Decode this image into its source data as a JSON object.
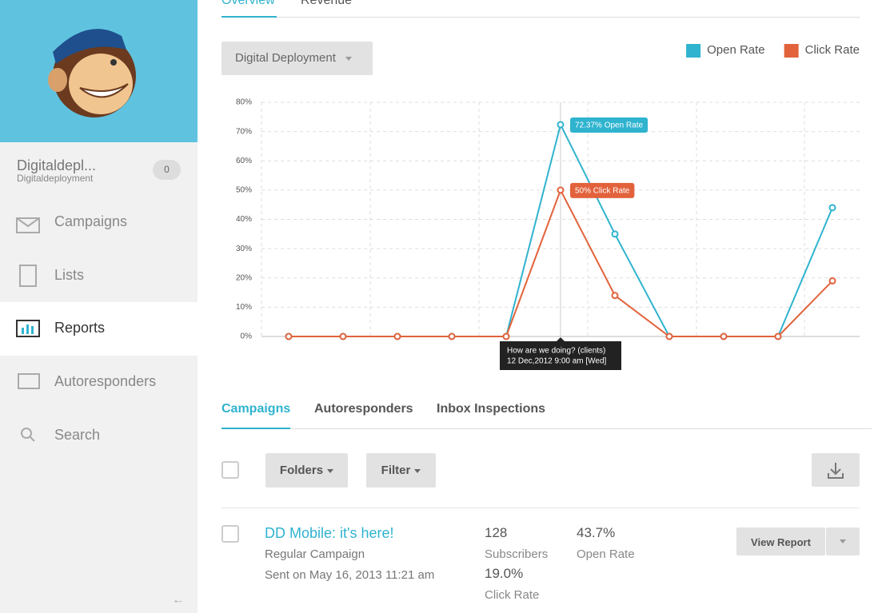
{
  "sidebar": {
    "account_name": "Digitaldepl...",
    "account_sub": "Digitaldeployment",
    "badge": "0",
    "nav": [
      "Campaigns",
      "Lists",
      "Reports",
      "Autoresponders",
      "Search"
    ],
    "collapse": "←"
  },
  "top_tabs": [
    "Overview",
    "Revenue"
  ],
  "dropdown": "Digital Deployment",
  "chart_data": {
    "type": "line",
    "categories": [
      null,
      null,
      null,
      null,
      null,
      null,
      null,
      null,
      null,
      null,
      null
    ],
    "series": [
      {
        "name": "Open Rate",
        "color": "#2fb3cf",
        "values": [
          0,
          0,
          0,
          0,
          0,
          72.37,
          35,
          0,
          0,
          0,
          44
        ],
        "value_labels": [
          null,
          null,
          null,
          null,
          null,
          "72.37% Open Rate",
          null,
          null,
          null,
          null,
          null
        ]
      },
      {
        "name": "Click Rate",
        "color": "#e2623b",
        "values": [
          0,
          0,
          0,
          0,
          0,
          50,
          14,
          0,
          0,
          0,
          19
        ],
        "value_labels": [
          null,
          null,
          null,
          null,
          null,
          "50% Click Rate",
          null,
          null,
          null,
          null,
          null
        ]
      }
    ],
    "ylim": [
      0,
      80
    ],
    "yticks": [
      {
        "value": 0,
        "label": "0%"
      },
      {
        "value": 10,
        "label": "10%"
      },
      {
        "value": 20,
        "label": "20%"
      },
      {
        "value": 30,
        "label": "30%"
      },
      {
        "value": 40,
        "label": "40%"
      },
      {
        "value": 50,
        "label": "50%"
      },
      {
        "value": 60,
        "label": "60%"
      },
      {
        "value": 70,
        "label": "70%"
      },
      {
        "value": 80,
        "label": "80%"
      }
    ],
    "grid": true,
    "legend": "top-right",
    "annotation": [
      "How are we doing? (clients)",
      "12 Dec,2012 9:00 am [Wed]"
    ]
  },
  "list_tabs": [
    "Campaigns",
    "Autoresponders",
    "Inbox Inspections"
  ],
  "toolbar": {
    "folders": "Folders",
    "filter": "Filter"
  },
  "campaigns": [
    {
      "title": "DD Mobile: it's here!",
      "type": "Regular Campaign",
      "sent": "Sent on May 16, 2013 11:21 am",
      "subscribers": "128",
      "subscribers_label": "Subscribers",
      "click_rate": "19.0%",
      "click_label": "Click Rate",
      "open_rate": "43.7%",
      "open_label": "Open Rate",
      "action": "View Report"
    }
  ]
}
